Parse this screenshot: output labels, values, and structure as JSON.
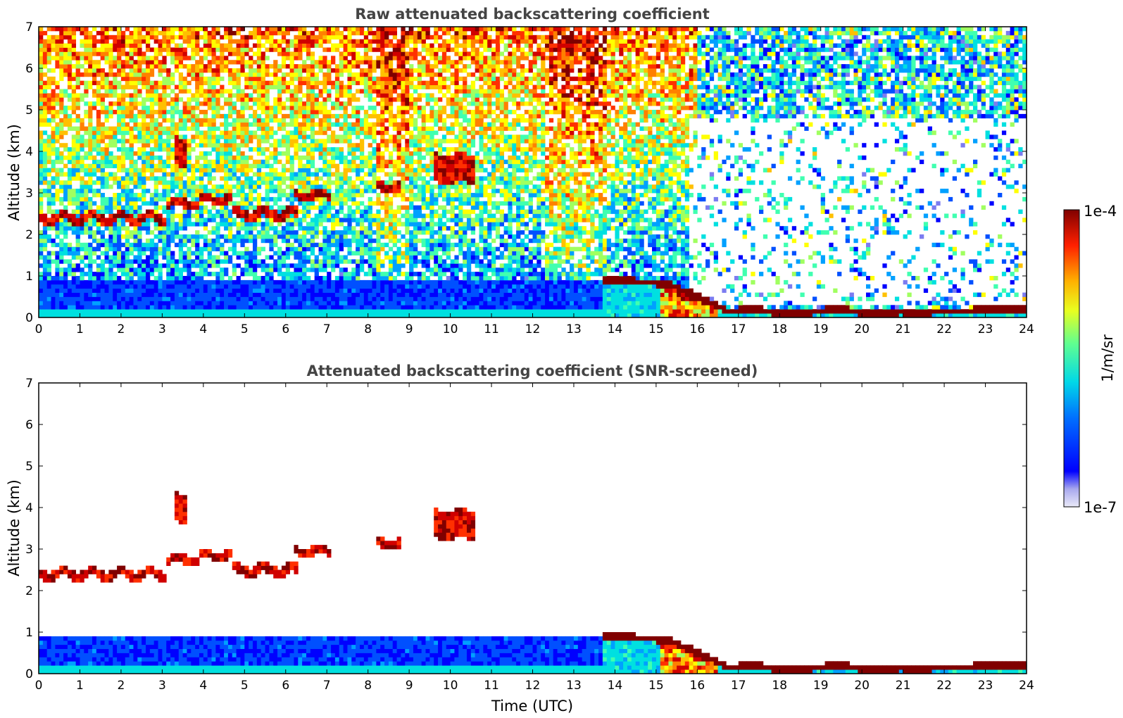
{
  "chart_data": [
    {
      "type": "heatmap",
      "title": "Raw attenuated backscattering coefficient",
      "xlabel": "",
      "ylabel": "Altitude (km)",
      "xlim": [
        0,
        24
      ],
      "ylim": [
        0,
        7
      ],
      "xticks": [
        "0",
        "1",
        "2",
        "3",
        "4",
        "5",
        "6",
        "7",
        "8",
        "9",
        "10",
        "11",
        "12",
        "13",
        "14",
        "15",
        "16",
        "17",
        "18",
        "19",
        "20",
        "21",
        "22",
        "23",
        "24"
      ],
      "yticks": [
        "0",
        "1",
        "2",
        "3",
        "4",
        "5",
        "6",
        "7"
      ],
      "features": [
        {
          "kind": "cloud_layer",
          "t_start": 0.0,
          "t_end": 3.1,
          "alt_km": 2.4,
          "level": "high"
        },
        {
          "kind": "cloud_layer",
          "t_start": 3.1,
          "t_end": 3.9,
          "alt_km": 2.75,
          "level": "high"
        },
        {
          "kind": "cloud_layer",
          "t_start": 3.9,
          "t_end": 4.7,
          "alt_km": 2.85,
          "level": "high"
        },
        {
          "kind": "cloud_layer",
          "t_start": 4.7,
          "t_end": 6.3,
          "alt_km": 2.5,
          "level": "high"
        },
        {
          "kind": "cloud_layer",
          "t_start": 6.2,
          "t_end": 7.1,
          "alt_km": 2.95,
          "level": "high"
        },
        {
          "kind": "cloud_layer",
          "t_start": 8.2,
          "t_end": 8.8,
          "alt_km": 3.15,
          "level": "high"
        },
        {
          "kind": "cloud_layer",
          "t_start": 3.3,
          "t_end": 3.6,
          "alt_km": 4.0,
          "level": "high"
        },
        {
          "kind": "cloud_layer",
          "t_start": 9.6,
          "t_end": 10.6,
          "alt_km": 3.6,
          "level": "high"
        },
        {
          "kind": "boundary_layer_top",
          "t_start": 13.7,
          "t_end": 23.8,
          "alt_km": [
            0.95,
            0.85,
            0.15,
            0.2
          ],
          "level": "high"
        }
      ]
    },
    {
      "type": "heatmap",
      "title": "Attenuated backscattering coefficient (SNR-screened)",
      "xlabel": "Time (UTC)",
      "ylabel": "Altitude (km)",
      "xlim": [
        0,
        24
      ],
      "ylim": [
        0,
        7
      ],
      "xticks": [
        "0",
        "1",
        "2",
        "3",
        "4",
        "5",
        "6",
        "7",
        "8",
        "9",
        "10",
        "11",
        "12",
        "13",
        "14",
        "15",
        "16",
        "17",
        "18",
        "19",
        "20",
        "21",
        "22",
        "23",
        "24"
      ],
      "yticks": [
        "0",
        "1",
        "2",
        "3",
        "4",
        "5",
        "6",
        "7"
      ]
    }
  ],
  "colorbar": {
    "label": "1/m/sr",
    "max_label": "1e-4",
    "min_label": "1e-7",
    "colormap": [
      "#e6e6f5",
      "#b4b4ee",
      "#7c7cf0",
      "#0000ff",
      "#0050ff",
      "#00a0ff",
      "#00e0e0",
      "#40ffb0",
      "#a0ff60",
      "#ffff00",
      "#ffc000",
      "#ff8000",
      "#ff3000",
      "#d00000",
      "#800000"
    ]
  }
}
